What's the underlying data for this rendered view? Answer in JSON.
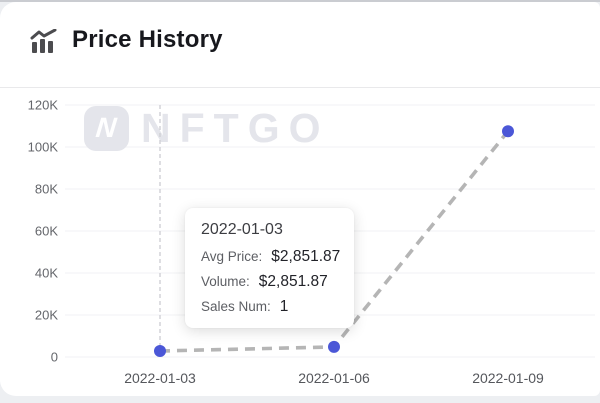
{
  "header": {
    "title": "Price History"
  },
  "watermark": {
    "text": "NFTGO",
    "logo_letter": "N"
  },
  "tooltip": {
    "date": "2022-01-03",
    "rows": [
      {
        "label": "Avg Price:",
        "value": "$2,851.87"
      },
      {
        "label": "Volume:",
        "value": "$2,851.87"
      },
      {
        "label": "Sales Num:",
        "value": "1"
      }
    ]
  },
  "chart_data": {
    "type": "line",
    "title": "Price History",
    "x": [
      "2022-01-03",
      "2022-01-06",
      "2022-01-09"
    ],
    "series": [
      {
        "name": "Avg Price",
        "values": [
          2851.87,
          4800,
          107500
        ]
      }
    ],
    "ylim": [
      0,
      120000
    ],
    "yticks": [
      0,
      20000,
      40000,
      60000,
      80000,
      100000,
      120000
    ],
    "ytick_labels": [
      "0",
      "20K",
      "40K",
      "60K",
      "80K",
      "100K",
      "120K"
    ],
    "grid": true,
    "legend": "none",
    "line_style": "dashed",
    "highlighted_x": "2022-01-03",
    "colors": {
      "point": "#4b57d7",
      "line": "#b5b5b5",
      "guide": "#cdcdd2",
      "gridline": "#f1f2f4",
      "axis_text": "#5f6166"
    }
  }
}
